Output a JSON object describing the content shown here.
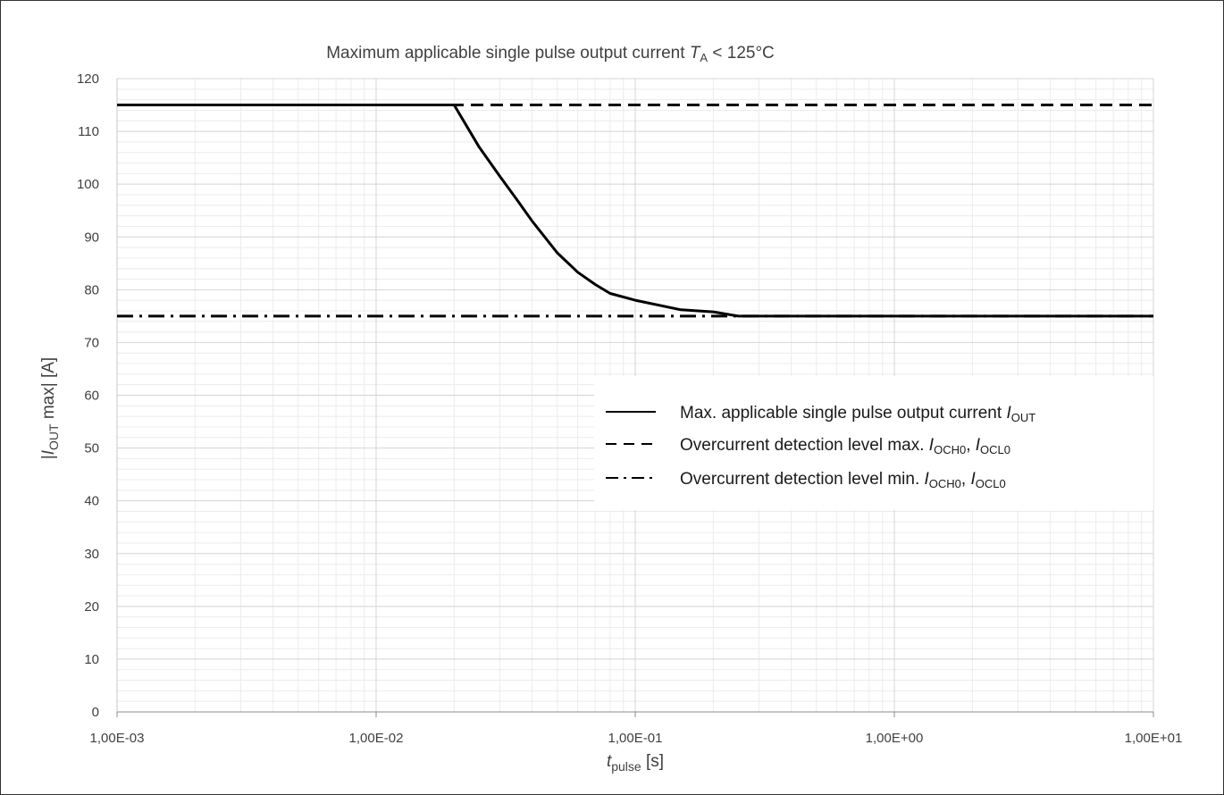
{
  "chart_data": {
    "type": "line",
    "title": {
      "text": "Maximum applicable single pulse output current ",
      "var": "T",
      "var_sub": "A",
      "suffix": " < 125°C"
    },
    "xlabel": {
      "var": "t",
      "sub": "pulse",
      "suffix": " [s]"
    },
    "ylabel": {
      "prefix": "|",
      "var": "I",
      "sub": "OUT",
      "suffix": " max| [A]"
    },
    "x_scale": "log",
    "xlim": [
      0.001,
      10
    ],
    "ylim": [
      0,
      120
    ],
    "x_ticks": [
      0.001,
      0.01,
      0.1,
      1,
      10
    ],
    "x_tick_labels": [
      "1,00E-03",
      "1,00E-02",
      "1,00E-01",
      "1,00E+00",
      "1,00E+01"
    ],
    "y_ticks": [
      0,
      10,
      20,
      30,
      40,
      50,
      60,
      70,
      80,
      90,
      100,
      110,
      120
    ],
    "y_tick_labels": [
      "0",
      "10",
      "20",
      "30",
      "40",
      "50",
      "60",
      "70",
      "80",
      "90",
      "100",
      "110",
      "120"
    ],
    "grid": true,
    "legend_position": "center-right",
    "series": [
      {
        "name": "Max. applicable single pulse output current ",
        "name_vars": "I",
        "name_subs": "OUT",
        "style": "solid",
        "color": "#000000",
        "x": [
          0.001,
          0.02,
          0.025,
          0.03,
          0.035,
          0.04,
          0.05,
          0.06,
          0.07,
          0.08,
          0.1,
          0.15,
          0.2,
          0.25,
          0.3,
          1,
          10
        ],
        "y": [
          115,
          115,
          107,
          101.5,
          97,
          93,
          87,
          83.3,
          81,
          79.3,
          78,
          76.2,
          75.8,
          75,
          75,
          75,
          75
        ]
      },
      {
        "name": "Overcurrent detection level max. ",
        "name_vars": "I",
        "name_subs": [
          "OCH0",
          "OCL0"
        ],
        "style": "dashed",
        "color": "#000000",
        "x": [
          0.001,
          10
        ],
        "y": [
          115,
          115
        ]
      },
      {
        "name": "Overcurrent detection level min. ",
        "name_vars": "I",
        "name_subs": [
          "OCH0",
          "OCL0"
        ],
        "style": "dashdot",
        "color": "#000000",
        "x": [
          0.001,
          10
        ],
        "y": [
          75,
          75
        ]
      }
    ]
  }
}
